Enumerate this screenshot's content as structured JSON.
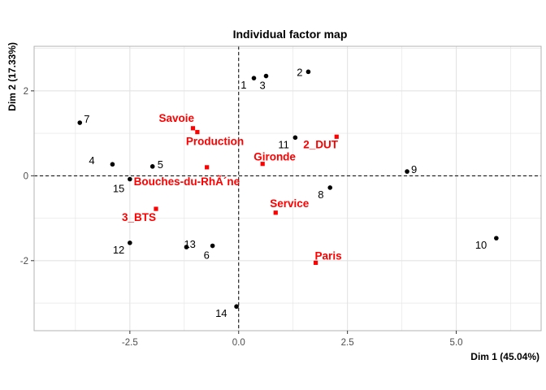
{
  "chart_data": {
    "type": "scatter",
    "title": "Individual factor map",
    "xlabel": "Dim 1 (45.04%)",
    "ylabel": "Dim 2 (17.33%)",
    "xlim": [
      -4.7,
      6.95
    ],
    "ylim": [
      -3.65,
      3.05
    ],
    "x_ticks": [
      -2.5,
      0.0,
      2.5,
      5.0
    ],
    "x_tick_labels": [
      "-2.5",
      "0.0",
      "2.5",
      "5.0"
    ],
    "y_ticks": [
      -2,
      0,
      2
    ],
    "y_tick_labels": [
      "-2",
      "0",
      "2"
    ],
    "grid": true,
    "reference_lines": {
      "x": 0,
      "y": 0
    },
    "colors": {
      "individuals": "#000000",
      "modalities": "#ff0000",
      "grid": "#e3e3e3",
      "panel_border": "#b3b3b3"
    },
    "individuals": [
      {
        "label": "1",
        "x": 0.35,
        "y": 2.3
      },
      {
        "label": "2",
        "x": 1.6,
        "y": 2.45
      },
      {
        "label": "3",
        "x": 0.63,
        "y": 2.35
      },
      {
        "label": "4",
        "x": -2.9,
        "y": 0.27
      },
      {
        "label": "5",
        "x": -1.98,
        "y": 0.22
      },
      {
        "label": "6",
        "x": -0.6,
        "y": -1.65
      },
      {
        "label": "7",
        "x": -3.65,
        "y": 1.25
      },
      {
        "label": "8",
        "x": 2.1,
        "y": -0.28
      },
      {
        "label": "9",
        "x": 3.87,
        "y": 0.1
      },
      {
        "label": "10",
        "x": 5.92,
        "y": -1.47
      },
      {
        "label": "11",
        "x": 1.3,
        "y": 0.9
      },
      {
        "label": "12",
        "x": -2.5,
        "y": -1.58
      },
      {
        "label": "13",
        "x": -1.2,
        "y": -1.68
      },
      {
        "label": "14",
        "x": -0.05,
        "y": -3.08
      },
      {
        "label": "15",
        "x": -2.5,
        "y": -0.08
      }
    ],
    "modalities": [
      {
        "label": "Savoie",
        "x": -1.05,
        "y": 1.12
      },
      {
        "label": "Production",
        "x": -0.95,
        "y": 1.03
      },
      {
        "label": "2_DUT",
        "x": 2.25,
        "y": 0.92
      },
      {
        "label": "Gironde",
        "x": 0.55,
        "y": 0.28
      },
      {
        "label": "Bouches-du-RhÃ´ne",
        "x": -0.73,
        "y": 0.2
      },
      {
        "label": "3_BTS",
        "x": -1.9,
        "y": -0.78
      },
      {
        "label": "Service",
        "x": 0.85,
        "y": -0.87
      },
      {
        "label": "Paris",
        "x": 1.77,
        "y": -2.05
      }
    ]
  }
}
